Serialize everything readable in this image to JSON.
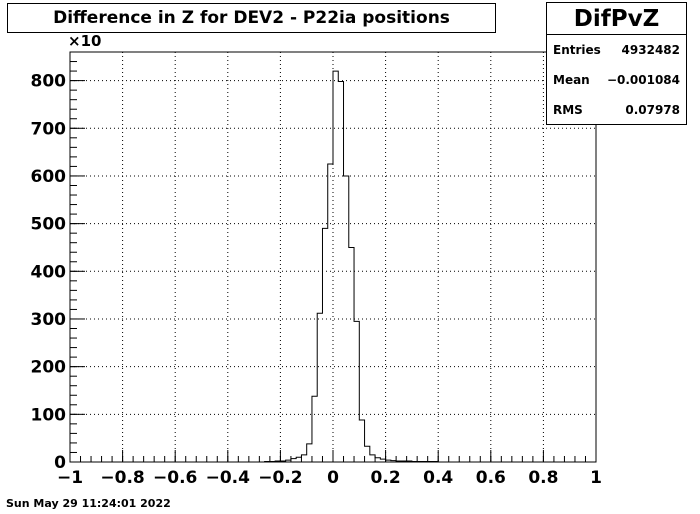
{
  "title": "Difference in Z for DEV2 - P22ia positions",
  "stats": {
    "name": "DifPvZ",
    "rows": [
      {
        "label": "Entries",
        "value": "4932482"
      },
      {
        "label": "Mean",
        "value": "−0.001084"
      },
      {
        "label": "RMS",
        "value": "0.07978"
      }
    ]
  },
  "y_exponent_label": "×10",
  "date": "Sun May 29 11:24:01 2022",
  "chart_data": {
    "type": "bar",
    "style": "histogram-step",
    "xlim": [
      -1,
      1
    ],
    "ylim": [
      0,
      860
    ],
    "grid": true,
    "x_ticks": [
      -1,
      -0.8,
      -0.6,
      -0.4,
      -0.2,
      0,
      0.2,
      0.4,
      0.6,
      0.8,
      1
    ],
    "x_tick_labels": [
      "−1",
      "−0.8",
      "−0.6",
      "−0.4",
      "−0.2",
      "0",
      "0.2",
      "0.4",
      "0.6",
      "0.8",
      "1"
    ],
    "y_ticks": [
      0,
      100,
      200,
      300,
      400,
      500,
      600,
      700,
      800
    ],
    "y_tick_labels": [
      "0",
      "100",
      "200",
      "300",
      "400",
      "500",
      "600",
      "700",
      "800"
    ],
    "bin_edges_range": [
      -0.26,
      0.4
    ],
    "bin_width": 0.02,
    "values": [
      1,
      1,
      2,
      2,
      4,
      7,
      10,
      15,
      38,
      138,
      312,
      490,
      625,
      820,
      798,
      600,
      450,
      295,
      88,
      33,
      15,
      9,
      6,
      4,
      3,
      2,
      2,
      2,
      1,
      1,
      1,
      1,
      1
    ]
  }
}
